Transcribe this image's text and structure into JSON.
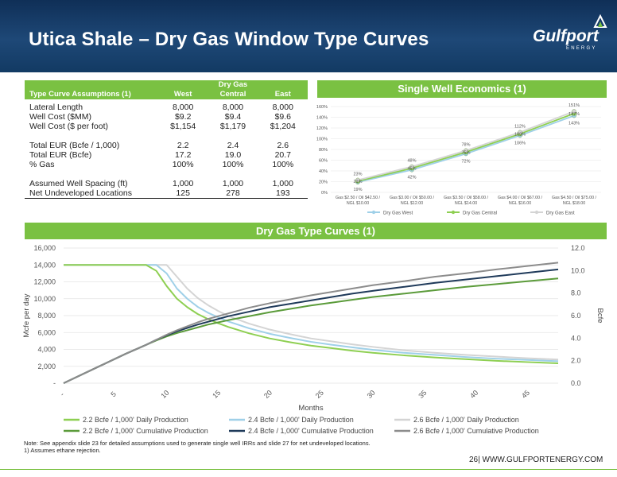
{
  "header": {
    "title": "Utica Shale – Dry Gas Window Type Curves",
    "logo_name": "Gulfport",
    "logo_sub": "ENERGY"
  },
  "assumptions": {
    "title": "Type Curve Assumptions (1)",
    "group_label": "Dry Gas",
    "columns": [
      "West",
      "Central",
      "East"
    ],
    "rows": [
      {
        "label": "Lateral Length",
        "values": [
          "8,000",
          "8,000",
          "8,000"
        ]
      },
      {
        "label": "Well Cost ($MM)",
        "values": [
          "$9.2",
          "$9.4",
          "$9.6"
        ]
      },
      {
        "label": "Well Cost ($ per foot)",
        "values": [
          "$1,154",
          "$1,179",
          "$1,204"
        ]
      },
      {
        "label": "",
        "values": [
          "",
          "",
          ""
        ]
      },
      {
        "label": "Total EUR (Bcfe / 1,000)",
        "values": [
          "2.2",
          "2.4",
          "2.6"
        ]
      },
      {
        "label": "Total EUR (Bcfe)",
        "values": [
          "17.2",
          "19.0",
          "20.7"
        ]
      },
      {
        "label": "% Gas",
        "values": [
          "100%",
          "100%",
          "100%"
        ]
      },
      {
        "label": "",
        "values": [
          "",
          "",
          ""
        ]
      },
      {
        "label": "Assumed Well Spacing (ft)",
        "values": [
          "1,000",
          "1,000",
          "1,000"
        ]
      },
      {
        "label": "Net Undeveloped Locations",
        "values": [
          "125",
          "278",
          "193"
        ]
      }
    ]
  },
  "economics_banner": "Single Well Economics (1)",
  "type_curves_banner": "Dry Gas Type Curves (1)",
  "notes": {
    "line1": "Note: See appendix slide 23 for detailed assumptions used to generate single well IRRs and slide 27 for net undeveloped locations.",
    "line2": "1)      Assumes ethane rejection."
  },
  "footer": "26| WWW.GULFPORTENERGY.COM",
  "colors": {
    "green": "#7ac142",
    "light_green": "#8ecf52",
    "light_blue": "#9fd0e8",
    "light_gray": "#d4d4d4",
    "dark_green": "#5b9b3a",
    "navy": "#1f3a5a",
    "gray": "#8c8c8c"
  },
  "chart_data": [
    {
      "type": "line",
      "title": "",
      "categories": [
        "Gas $2.50 / Oil $42.50 / NGL $10.00",
        "Gas $3.00 / Oil $50.00 / NGL $12.00",
        "Gas $3.50 / Oil $58.00 / NGL $14.00",
        "Gas $4.00 / Oil $67.00 / NGL $16.00",
        "Gas $4.50 / Oil $75.00 / NGL $18.00"
      ],
      "yticks": [
        "0%",
        "20%",
        "40%",
        "60%",
        "80%",
        "100%",
        "120%",
        "140%",
        "160%"
      ],
      "ylim": [
        0,
        160
      ],
      "series": [
        {
          "name": "Dry Gas West",
          "values": [
            19,
            42,
            72,
            106,
            143
          ],
          "labels": [
            "19%",
            "42%",
            "72%",
            "106%",
            "143%"
          ]
        },
        {
          "name": "Dry Gas Central",
          "values": [
            21,
            45,
            75,
            109,
            147
          ],
          "labels": [
            "21%",
            "45%",
            "75%",
            "109%",
            "147%"
          ]
        },
        {
          "name": "Dry Gas East",
          "values": [
            23,
            48,
            78,
            112,
            151
          ],
          "labels": [
            "23%",
            "48%",
            "78%",
            "112%",
            "151%"
          ]
        }
      ]
    },
    {
      "type": "line",
      "title": "",
      "xlabel": "Months",
      "ylabel_left": "Mcfe per day",
      "ylabel_right": "Bcfe",
      "xlim": [
        0,
        48
      ],
      "ylim_left": [
        0,
        16000
      ],
      "ylim_right": [
        0,
        12
      ],
      "xticks": [
        "-",
        "5",
        "10",
        "15",
        "20",
        "25",
        "30",
        "35",
        "40",
        "45"
      ],
      "yticks_left": [
        "-",
        "2,000",
        "4,000",
        "6,000",
        "8,000",
        "10,000",
        "12,000",
        "14,000",
        "16,000"
      ],
      "yticks_right": [
        "0.0",
        "2.0",
        "4.0",
        "6.0",
        "8.0",
        "10.0",
        "12.0"
      ],
      "x": [
        0,
        3,
        6,
        8,
        9,
        10,
        11,
        12,
        13,
        14,
        15,
        16,
        18,
        20,
        22,
        24,
        26,
        28,
        30,
        33,
        36,
        39,
        42,
        45,
        48
      ],
      "series": [
        {
          "name": "2.2 Bcfe / 1,000' Daily Production",
          "axis": "left",
          "values": [
            14000,
            14000,
            14000,
            14000,
            13300,
            11500,
            10000,
            9000,
            8200,
            7600,
            7100,
            6650,
            5900,
            5300,
            4850,
            4450,
            4150,
            3850,
            3600,
            3300,
            3050,
            2850,
            2650,
            2500,
            2350
          ]
        },
        {
          "name": "2.4 Bcfe / 1,000' Daily Production",
          "axis": "left",
          "values": [
            14000,
            14000,
            14000,
            14000,
            14000,
            13000,
            11200,
            10000,
            9050,
            8350,
            7800,
            7300,
            6500,
            5850,
            5350,
            4900,
            4550,
            4250,
            3950,
            3600,
            3350,
            3100,
            2900,
            2750,
            2600
          ]
        },
        {
          "name": "2.6 Bcfe / 1,000' Daily Production",
          "axis": "left",
          "values": [
            14000,
            14000,
            14000,
            14000,
            14000,
            14000,
            12600,
            11200,
            10100,
            9250,
            8550,
            7950,
            7050,
            6350,
            5800,
            5300,
            4950,
            4600,
            4300,
            3900,
            3600,
            3350,
            3150,
            2950,
            2800
          ]
        },
        {
          "name": "2.2 Bcfe / 1,000' Cumulative Production",
          "axis": "right",
          "values": [
            0,
            1.3,
            2.6,
            3.4,
            3.8,
            4.15,
            4.45,
            4.7,
            4.95,
            5.2,
            5.4,
            5.6,
            5.95,
            6.3,
            6.6,
            6.9,
            7.15,
            7.4,
            7.65,
            7.95,
            8.25,
            8.55,
            8.8,
            9.05,
            9.3
          ]
        },
        {
          "name": "2.4 Bcfe / 1,000' Cumulative Production",
          "axis": "right",
          "values": [
            0,
            1.3,
            2.6,
            3.4,
            3.85,
            4.25,
            4.6,
            4.9,
            5.2,
            5.45,
            5.7,
            5.95,
            6.35,
            6.75,
            7.05,
            7.35,
            7.65,
            7.95,
            8.2,
            8.55,
            8.9,
            9.2,
            9.5,
            9.8,
            10.1
          ]
        },
        {
          "name": "2.6 Bcfe / 1,000' Cumulative Production",
          "axis": "right",
          "values": [
            0,
            1.3,
            2.6,
            3.4,
            3.85,
            4.3,
            4.7,
            5.05,
            5.4,
            5.7,
            5.95,
            6.2,
            6.7,
            7.1,
            7.45,
            7.8,
            8.1,
            8.4,
            8.7,
            9.05,
            9.45,
            9.75,
            10.1,
            10.4,
            10.7
          ]
        }
      ]
    }
  ]
}
